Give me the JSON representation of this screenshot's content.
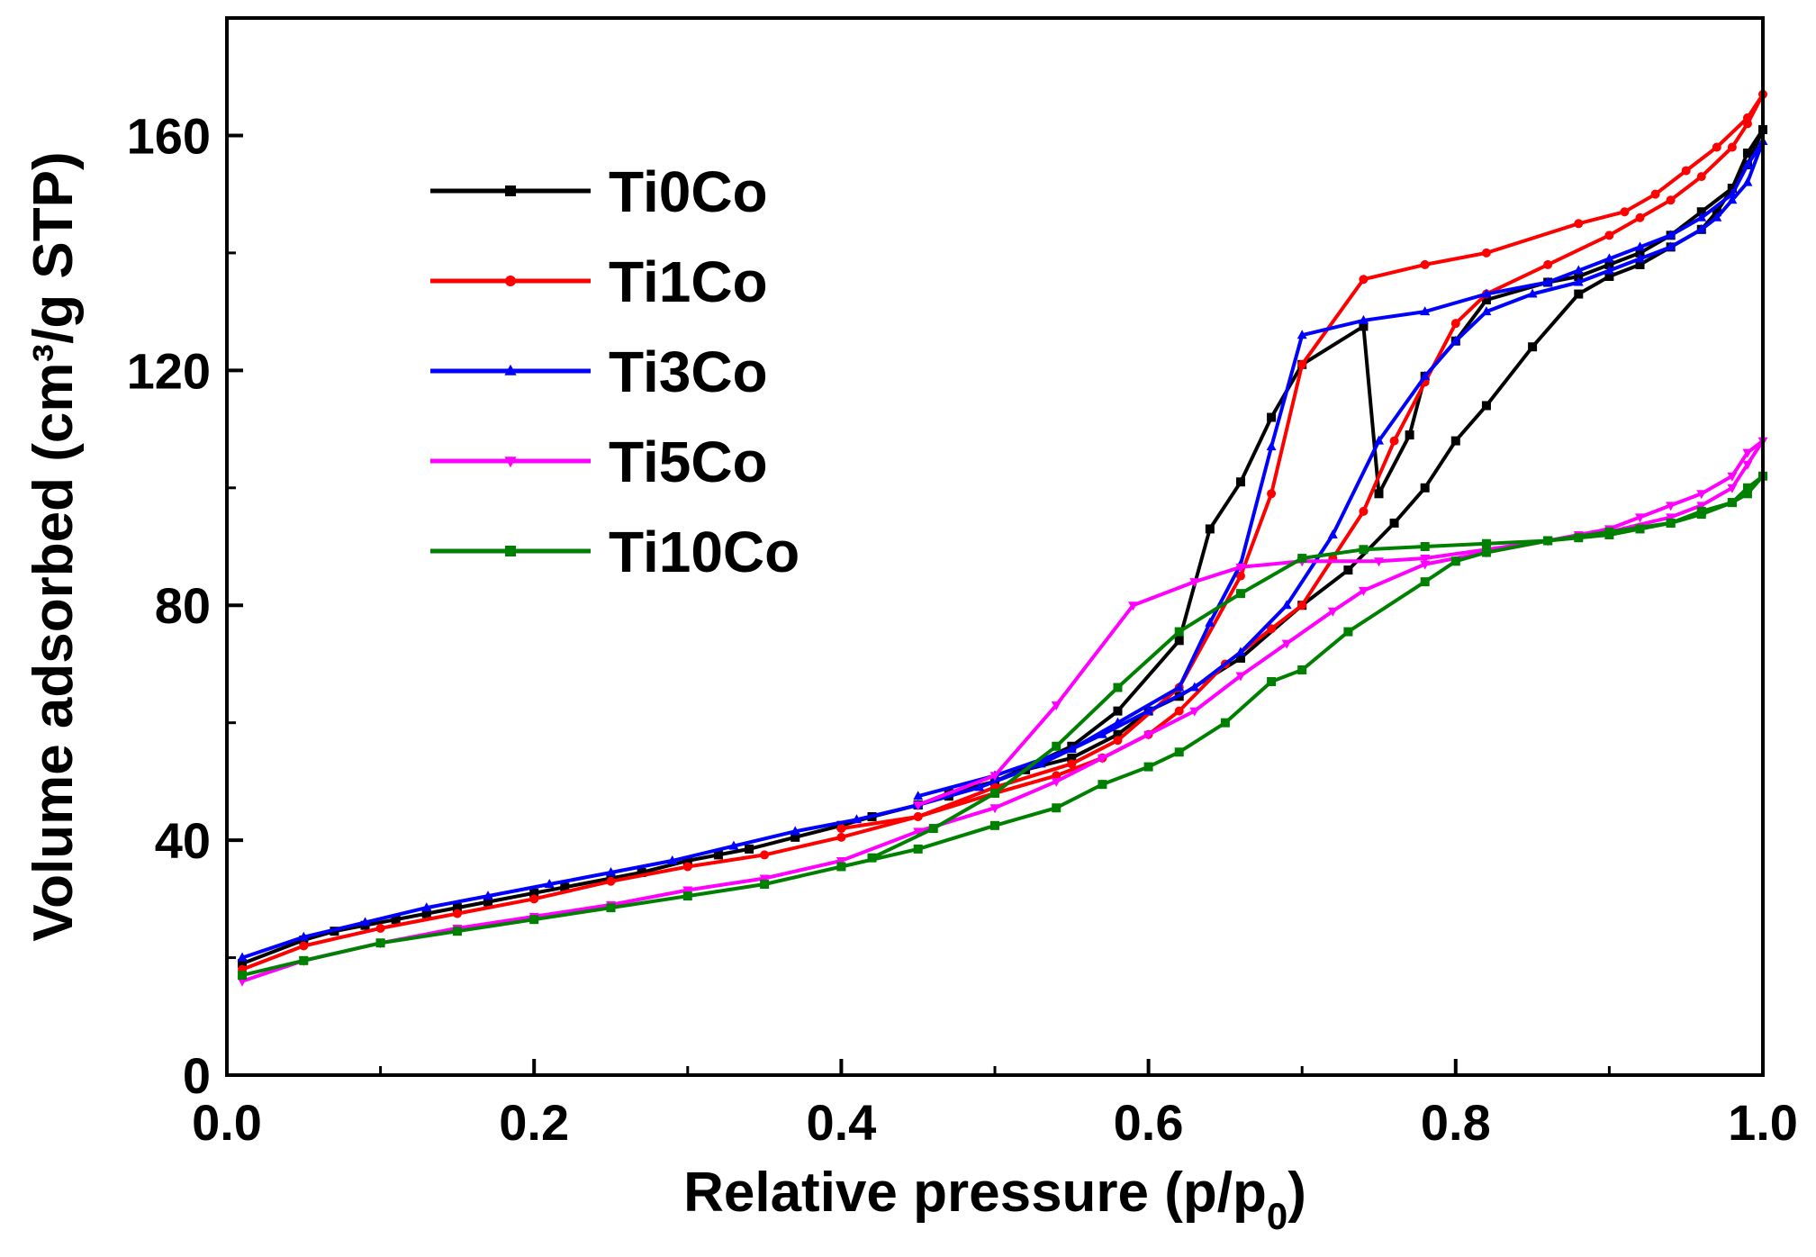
{
  "chart_data": {
    "type": "line",
    "title": "",
    "xlabel": "Relative pressure (p/p",
    "xlabel_sub": "0",
    "xlabel_end": ")",
    "ylabel": "Volume adsorbed (cm³/g STP)",
    "xlim": [
      0,
      1.0
    ],
    "ylim": [
      0,
      180
    ],
    "x_ticks": [
      "0.0",
      "0.2",
      "0.4",
      "0.6",
      "0.8",
      "1.0"
    ],
    "y_ticks": [
      "0",
      "40",
      "80",
      "120",
      "160"
    ],
    "legend_position": "top-left",
    "series": [
      {
        "name": "Ti0Co",
        "color": "#000000",
        "marker": "square",
        "x": [
          0.01,
          0.05,
          0.07,
          0.09,
          0.11,
          0.13,
          0.15,
          0.17,
          0.2,
          0.22,
          0.25,
          0.27,
          0.3,
          0.32,
          0.34,
          0.37,
          0.4,
          0.42,
          0.45,
          0.47,
          0.5,
          0.52,
          0.55,
          0.58,
          0.6,
          0.62,
          0.66,
          0.7,
          0.73,
          0.76,
          0.78,
          0.8,
          0.82,
          0.85,
          0.88,
          0.9,
          0.92,
          0.94,
          0.96,
          0.97,
          0.98,
          0.99,
          1.0,
          0.99,
          0.98,
          0.96,
          0.94,
          0.92,
          0.9,
          0.88,
          0.86,
          0.82,
          0.8,
          0.78,
          0.77,
          0.75,
          0.74,
          0.7,
          0.68,
          0.66,
          0.64,
          0.62,
          0.58,
          0.55,
          0.5,
          0.47,
          0.45,
          0.42,
          0.4
        ],
        "y": [
          19,
          23,
          24.5,
          25.5,
          26.5,
          27.5,
          28.5,
          29.5,
          31,
          32,
          33.5,
          34.5,
          36.5,
          37.5,
          38.5,
          40.5,
          42.5,
          44,
          46,
          48,
          50,
          52,
          54,
          58,
          62,
          64.5,
          71,
          80,
          86,
          94,
          100,
          108,
          114,
          124,
          133,
          136,
          138,
          141,
          144,
          147,
          151,
          155,
          161,
          157,
          151,
          147,
          143,
          140,
          138,
          136,
          135,
          132,
          125,
          119,
          109,
          99,
          127.5,
          121,
          112,
          101,
          93,
          74,
          62,
          56,
          50,
          47.5,
          46,
          44,
          42.5
        ]
      },
      {
        "name": "Ti1Co",
        "color": "#ff0000",
        "marker": "circle",
        "x": [
          0.01,
          0.05,
          0.1,
          0.15,
          0.2,
          0.25,
          0.3,
          0.35,
          0.4,
          0.45,
          0.5,
          0.54,
          0.57,
          0.6,
          0.62,
          0.65,
          0.68,
          0.7,
          0.72,
          0.74,
          0.76,
          0.78,
          0.8,
          0.82,
          0.86,
          0.9,
          0.92,
          0.94,
          0.96,
          0.98,
          0.99,
          1.0,
          0.99,
          0.97,
          0.95,
          0.93,
          0.91,
          0.88,
          0.82,
          0.78,
          0.74,
          0.7,
          0.68,
          0.66,
          0.62,
          0.58,
          0.55,
          0.5,
          0.45,
          0.4
        ],
        "y": [
          18,
          22,
          25,
          27.5,
          30,
          33,
          35.5,
          37.5,
          40.5,
          44,
          48,
          51,
          54,
          58,
          62,
          70,
          76,
          80,
          88,
          96,
          108,
          118,
          128,
          133,
          138,
          143,
          146,
          149,
          153,
          158,
          162,
          167,
          163,
          158,
          154,
          150,
          147,
          145,
          140,
          138,
          135.5,
          121,
          99,
          85,
          66,
          57,
          53,
          49,
          44,
          42
        ]
      },
      {
        "name": "Ti3Co",
        "color": "#0000ff",
        "marker": "triangle-up",
        "x": [
          0.01,
          0.05,
          0.09,
          0.13,
          0.17,
          0.21,
          0.25,
          0.29,
          0.33,
          0.37,
          0.41,
          0.45,
          0.49,
          0.53,
          0.57,
          0.6,
          0.63,
          0.66,
          0.69,
          0.72,
          0.75,
          0.78,
          0.8,
          0.82,
          0.85,
          0.88,
          0.9,
          0.92,
          0.94,
          0.96,
          0.97,
          0.98,
          0.99,
          1.0,
          0.99,
          0.98,
          0.96,
          0.94,
          0.92,
          0.9,
          0.88,
          0.86,
          0.82,
          0.78,
          0.74,
          0.7,
          0.68,
          0.66,
          0.64,
          0.62,
          0.58,
          0.55,
          0.5,
          0.45
        ],
        "y": [
          20,
          23.5,
          26,
          28.5,
          30.5,
          32.5,
          34.5,
          36.5,
          39,
          41.5,
          43.5,
          46,
          49,
          53,
          58,
          62,
          66,
          72,
          80,
          92,
          108,
          119,
          125,
          130,
          133,
          135,
          137,
          139,
          141,
          144,
          146,
          149,
          152,
          159,
          155,
          150,
          146,
          143,
          141,
          139,
          137,
          135,
          133,
          130,
          128.5,
          126,
          107,
          87,
          77,
          66,
          60,
          55.5,
          51,
          47.5
        ]
      },
      {
        "name": "Ti5Co",
        "color": "#ff00ff",
        "marker": "triangle-down",
        "x": [
          0.01,
          0.05,
          0.1,
          0.15,
          0.2,
          0.25,
          0.3,
          0.35,
          0.4,
          0.45,
          0.5,
          0.54,
          0.57,
          0.6,
          0.63,
          0.66,
          0.69,
          0.72,
          0.74,
          0.78,
          0.82,
          0.86,
          0.9,
          0.94,
          0.96,
          0.98,
          0.99,
          1.0,
          0.99,
          0.98,
          0.96,
          0.94,
          0.92,
          0.9,
          0.88,
          0.86,
          0.82,
          0.78,
          0.75,
          0.7,
          0.66,
          0.63,
          0.59,
          0.54,
          0.5,
          0.45
        ],
        "y": [
          16,
          19.5,
          22.5,
          25,
          27,
          29,
          31.5,
          33.5,
          36.5,
          41.5,
          45.5,
          50,
          54,
          58,
          62,
          68,
          73.5,
          79,
          82.5,
          87,
          89,
          91,
          92.5,
          95,
          97,
          100,
          104,
          108,
          106,
          102,
          99,
          97,
          95,
          93,
          92,
          91,
          89.5,
          88,
          87.5,
          87.5,
          86.5,
          84,
          80,
          63,
          51,
          46
        ]
      },
      {
        "name": "Ti10Co",
        "color": "#008000",
        "marker": "square",
        "x": [
          0.01,
          0.05,
          0.1,
          0.15,
          0.2,
          0.25,
          0.3,
          0.35,
          0.4,
          0.45,
          0.5,
          0.54,
          0.57,
          0.6,
          0.62,
          0.65,
          0.68,
          0.7,
          0.73,
          0.78,
          0.8,
          0.82,
          0.86,
          0.9,
          0.94,
          0.96,
          0.98,
          0.99,
          1.0,
          0.99,
          0.98,
          0.96,
          0.94,
          0.92,
          0.9,
          0.88,
          0.86,
          0.82,
          0.78,
          0.74,
          0.7,
          0.66,
          0.62,
          0.58,
          0.54,
          0.5,
          0.46,
          0.42
        ],
        "y": [
          17,
          19.5,
          22.5,
          24.5,
          26.5,
          28.5,
          30.5,
          32.5,
          35.5,
          38.5,
          42.5,
          45.5,
          49.5,
          52.5,
          55,
          60,
          67,
          69,
          75.5,
          84,
          87.5,
          89,
          91,
          92.5,
          94,
          96,
          97.5,
          99,
          102,
          100,
          97.5,
          95.5,
          94,
          93,
          92,
          91.5,
          91,
          90.5,
          90,
          89.5,
          88,
          82,
          75.5,
          66,
          56,
          48,
          42,
          37
        ]
      }
    ]
  }
}
